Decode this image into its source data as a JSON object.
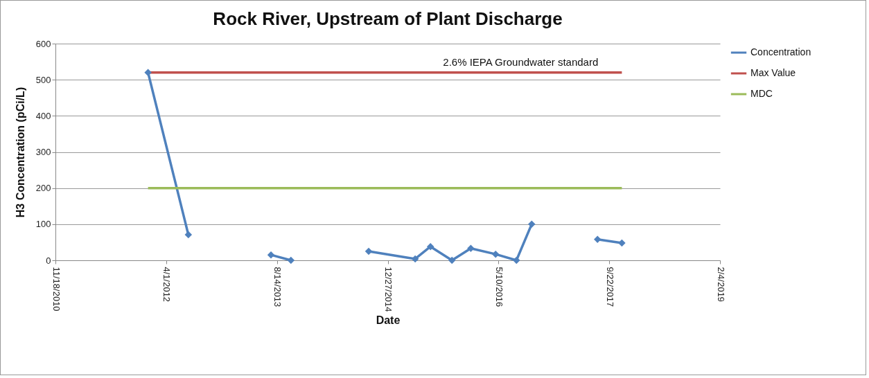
{
  "chart_data": {
    "type": "line",
    "title": "Rock River, Upstream of Plant Discharge",
    "xlabel": "Date",
    "ylabel": "H3 Concentration (pCi/L)",
    "series": [
      {
        "name": "Concentration",
        "color": "#4f81bd",
        "marker": "diamond",
        "x": [
          "2012-01-10",
          "2012-07-10",
          "2013-01-15",
          "2013-07-18",
          "2013-10-16",
          "2014-04-10",
          "2014-10-02",
          "2015-04-30",
          "2015-07-08",
          "2015-10-13",
          "2016-01-06",
          "2016-04-27",
          "2016-07-30",
          "2016-10-07",
          "2017-02-01",
          "2017-07-31",
          "2017-11-18"
        ],
        "values": [
          520,
          71,
          null,
          15,
          0,
          null,
          25,
          4,
          38,
          0,
          33,
          17,
          0,
          100,
          null,
          58,
          48
        ]
      },
      {
        "name": "Max Value",
        "color": "#c0504d",
        "x": [
          "2012-01-10",
          "2017-11-18"
        ],
        "values": [
          520,
          520
        ]
      },
      {
        "name": "MDC",
        "color": "#9bbb59",
        "x": [
          "2012-01-10",
          "2017-11-18"
        ],
        "values": [
          200,
          200
        ]
      }
    ],
    "annotations": [
      {
        "text": "2.6% IEPA Groundwater standard",
        "x": "2016-08-18",
        "y": 520
      }
    ],
    "xlim": [
      "2010-11-18",
      "2019-02-04"
    ],
    "xticks": [
      {
        "value": "2010-11-18",
        "label": "11/18/2010"
      },
      {
        "value": "2012-04-01",
        "label": "4/1/2012"
      },
      {
        "value": "2013-08-14",
        "label": "8/14/2013"
      },
      {
        "value": "2014-12-27",
        "label": "12/27/2014"
      },
      {
        "value": "2016-05-10",
        "label": "5/10/2016"
      },
      {
        "value": "2017-09-22",
        "label": "9/22/2017"
      },
      {
        "value": "2019-02-04",
        "label": "2/4/2019"
      }
    ],
    "ylim": [
      0,
      600
    ],
    "yticks": [
      0,
      100,
      200,
      300,
      400,
      500,
      600
    ],
    "grid": "y",
    "legend": "right"
  }
}
